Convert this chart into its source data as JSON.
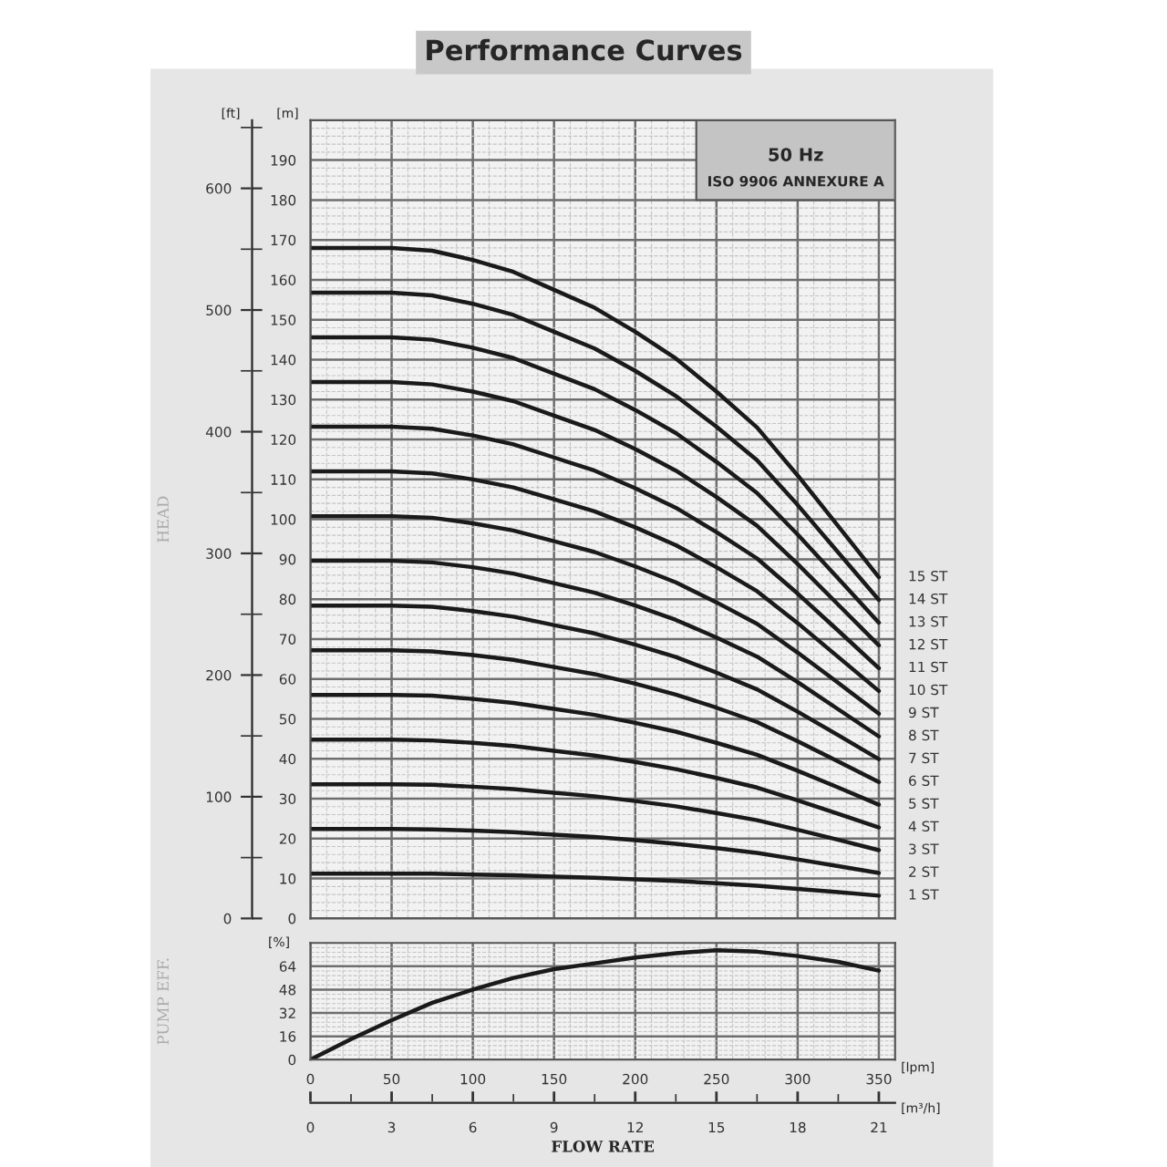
{
  "chart_data": [
    {
      "type": "line",
      "title": "Performance Curves",
      "ylabel": "[m]",
      "y2label": "[ft]",
      "annotations": [
        "HEAD",
        "50 Hz",
        "ISO 9906 ANNEXURE A"
      ],
      "x": [
        0,
        25,
        50,
        75,
        100,
        125,
        150,
        175,
        200,
        225,
        250,
        275,
        300,
        325,
        350
      ],
      "series": [
        {
          "name": "1 ST",
          "color": "#1a1a1a",
          "values": [
            11.2,
            11.2,
            11.2,
            11.2,
            11.0,
            10.8,
            10.5,
            10.2,
            9.8,
            9.4,
            8.8,
            8.2,
            7.4,
            6.6,
            5.7
          ]
        },
        {
          "name": "2 ST",
          "color": "#1a1a1a",
          "values": [
            22.4,
            22.4,
            22.4,
            22.3,
            22.0,
            21.6,
            21.0,
            20.4,
            19.6,
            18.7,
            17.6,
            16.4,
            14.8,
            13.1,
            11.4
          ]
        },
        {
          "name": "3 ST",
          "color": "#1a1a1a",
          "values": [
            33.6,
            33.6,
            33.6,
            33.5,
            33.0,
            32.4,
            31.5,
            30.6,
            29.4,
            28.1,
            26.4,
            24.6,
            22.2,
            19.7,
            17.1
          ]
        },
        {
          "name": "4 ST",
          "color": "#1a1a1a",
          "values": [
            44.8,
            44.8,
            44.8,
            44.6,
            44.0,
            43.2,
            42.0,
            40.8,
            39.2,
            37.4,
            35.2,
            32.8,
            29.6,
            26.2,
            22.8
          ]
        },
        {
          "name": "5 ST",
          "color": "#1a1a1a",
          "values": [
            56.0,
            56.0,
            56.0,
            55.8,
            55.0,
            54.0,
            52.5,
            51.0,
            49.0,
            46.8,
            44.0,
            41.0,
            37.0,
            32.8,
            28.5
          ]
        },
        {
          "name": "6 ST",
          "color": "#1a1a1a",
          "values": [
            67.2,
            67.2,
            67.2,
            66.9,
            66.0,
            64.8,
            63.0,
            61.2,
            58.8,
            56.1,
            52.8,
            49.2,
            44.4,
            39.3,
            34.2
          ]
        },
        {
          "name": "7 ST",
          "color": "#1a1a1a",
          "values": [
            78.4,
            78.4,
            78.4,
            78.1,
            77.0,
            75.6,
            73.5,
            71.4,
            68.6,
            65.5,
            61.6,
            57.4,
            51.8,
            45.9,
            39.9
          ]
        },
        {
          "name": "8 ST",
          "color": "#1a1a1a",
          "values": [
            89.6,
            89.6,
            89.6,
            89.2,
            88.0,
            86.4,
            84.0,
            81.6,
            78.4,
            74.8,
            70.4,
            65.6,
            59.2,
            52.4,
            45.6
          ]
        },
        {
          "name": "9 ST",
          "color": "#1a1a1a",
          "values": [
            100.8,
            100.8,
            100.8,
            100.4,
            99.0,
            97.2,
            94.5,
            91.8,
            88.2,
            84.2,
            79.2,
            73.8,
            66.6,
            59.0,
            51.3
          ]
        },
        {
          "name": "10 ST",
          "color": "#1a1a1a",
          "values": [
            112.0,
            112.0,
            112.0,
            111.5,
            110.0,
            108.0,
            105.0,
            102.0,
            98.0,
            93.5,
            88.0,
            82.0,
            74.0,
            65.5,
            57.0
          ]
        },
        {
          "name": "11 ST",
          "color": "#1a1a1a",
          "values": [
            123.2,
            123.2,
            123.2,
            122.7,
            121.0,
            118.8,
            115.5,
            112.2,
            107.8,
            102.9,
            96.8,
            90.2,
            81.4,
            72.1,
            62.7
          ]
        },
        {
          "name": "12 ST",
          "color": "#1a1a1a",
          "values": [
            134.4,
            134.4,
            134.4,
            133.8,
            132.0,
            129.6,
            126.0,
            122.4,
            117.6,
            112.2,
            105.6,
            98.4,
            88.8,
            78.6,
            68.4
          ]
        },
        {
          "name": "13 ST",
          "color": "#1a1a1a",
          "values": [
            145.6,
            145.6,
            145.6,
            145.0,
            143.0,
            140.4,
            136.5,
            132.6,
            127.4,
            121.6,
            114.4,
            106.6,
            96.2,
            85.2,
            74.1
          ]
        },
        {
          "name": "14 ST",
          "color": "#1a1a1a",
          "values": [
            156.8,
            156.8,
            156.8,
            156.1,
            154.0,
            151.2,
            147.0,
            142.8,
            137.2,
            130.9,
            123.2,
            114.8,
            103.6,
            91.7,
            79.8
          ]
        },
        {
          "name": "15 ST",
          "color": "#1a1a1a",
          "values": [
            168.0,
            168.0,
            168.0,
            167.3,
            165.0,
            162.0,
            157.5,
            153.0,
            147.0,
            140.3,
            132.0,
            123.0,
            111.0,
            98.3,
            85.5
          ]
        }
      ],
      "xlim": [
        0,
        360
      ],
      "xticks": [
        0,
        50,
        100,
        150,
        200,
        250,
        300,
        350
      ],
      "ylim": [
        0,
        200
      ],
      "yticks": [
        0,
        10,
        20,
        30,
        40,
        50,
        60,
        70,
        80,
        90,
        100,
        110,
        120,
        130,
        140,
        150,
        160,
        170,
        180,
        190
      ],
      "y2lim": [
        0,
        656
      ],
      "y2ticks": [
        0,
        100,
        200,
        300,
        400,
        500,
        600
      ],
      "grid": true,
      "tick_labels": "y"
    },
    {
      "type": "line",
      "ylabel": "PUMP EFF.",
      "x2label": "FLOW RATE",
      "annotations": [
        "[%]",
        "[lpm]",
        "[m³/h]"
      ],
      "x": [
        0,
        25,
        50,
        75,
        100,
        125,
        150,
        175,
        200,
        225,
        250,
        275,
        300,
        325,
        350
      ],
      "series": [
        {
          "color": "#1a1a1a",
          "values": [
            0,
            14,
            27,
            39,
            48,
            56,
            62,
            66,
            70,
            73,
            75,
            74,
            71,
            67,
            61
          ]
        }
      ],
      "xlim": [
        0,
        360
      ],
      "xticks": [
        0,
        50,
        100,
        150,
        200,
        250,
        300,
        350
      ],
      "ylim": [
        0,
        80
      ],
      "yticks": [
        0,
        16,
        32,
        48,
        64
      ],
      "x2lim": [
        0,
        21.6
      ],
      "x2ticks": [
        0,
        3,
        6,
        9,
        12,
        15,
        18,
        21
      ],
      "grid": true
    }
  ]
}
